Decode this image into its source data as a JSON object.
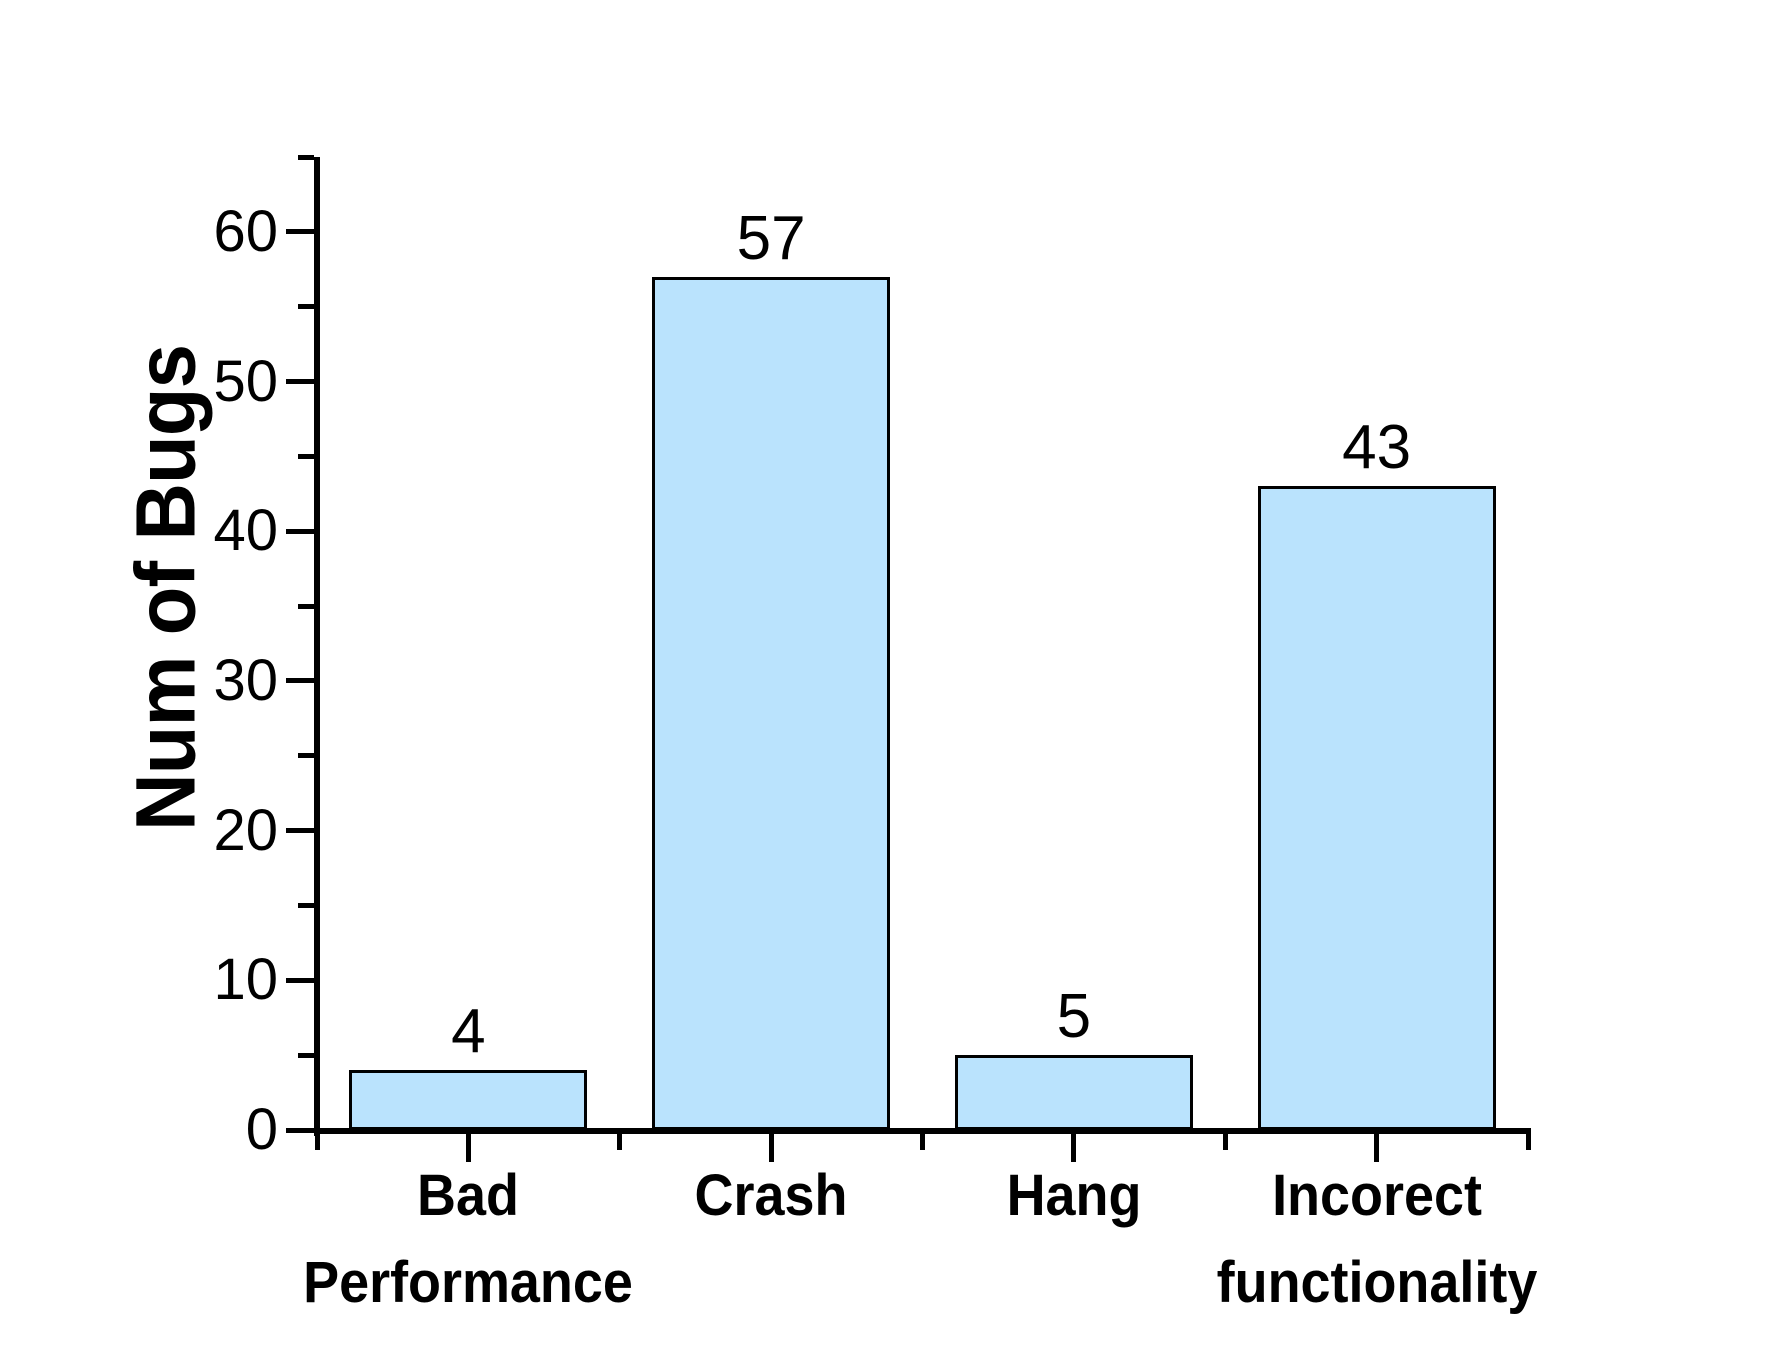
{
  "chart_data": {
    "type": "bar",
    "title": "",
    "xlabel": "",
    "ylabel": "Num of Bugs",
    "categories": [
      "Bad Performance",
      "Crash",
      "Hang",
      "Incorect functionality"
    ],
    "category_lines": [
      [
        "Bad",
        "Performance"
      ],
      [
        "Crash"
      ],
      [
        "Hang"
      ],
      [
        "Incorect",
        "functionality"
      ]
    ],
    "values": [
      4,
      57,
      5,
      43
    ],
    "value_labels": [
      "4",
      "57",
      "5",
      "43"
    ],
    "ylim": [
      0,
      65
    ],
    "ytick_labels": [
      "0",
      "10",
      "20",
      "30",
      "40",
      "50",
      "60"
    ],
    "yticks_major": [
      0,
      10,
      20,
      30,
      40,
      50,
      60
    ],
    "yticks_minor": [
      5,
      15,
      25,
      35,
      45,
      55,
      65
    ],
    "grid": false,
    "legend": false,
    "colors": {
      "bar_fill": "#BAE3FD",
      "bar_border": "#000000",
      "axis": "#000000",
      "text": "#000000",
      "background": "#FFFFFF"
    }
  }
}
